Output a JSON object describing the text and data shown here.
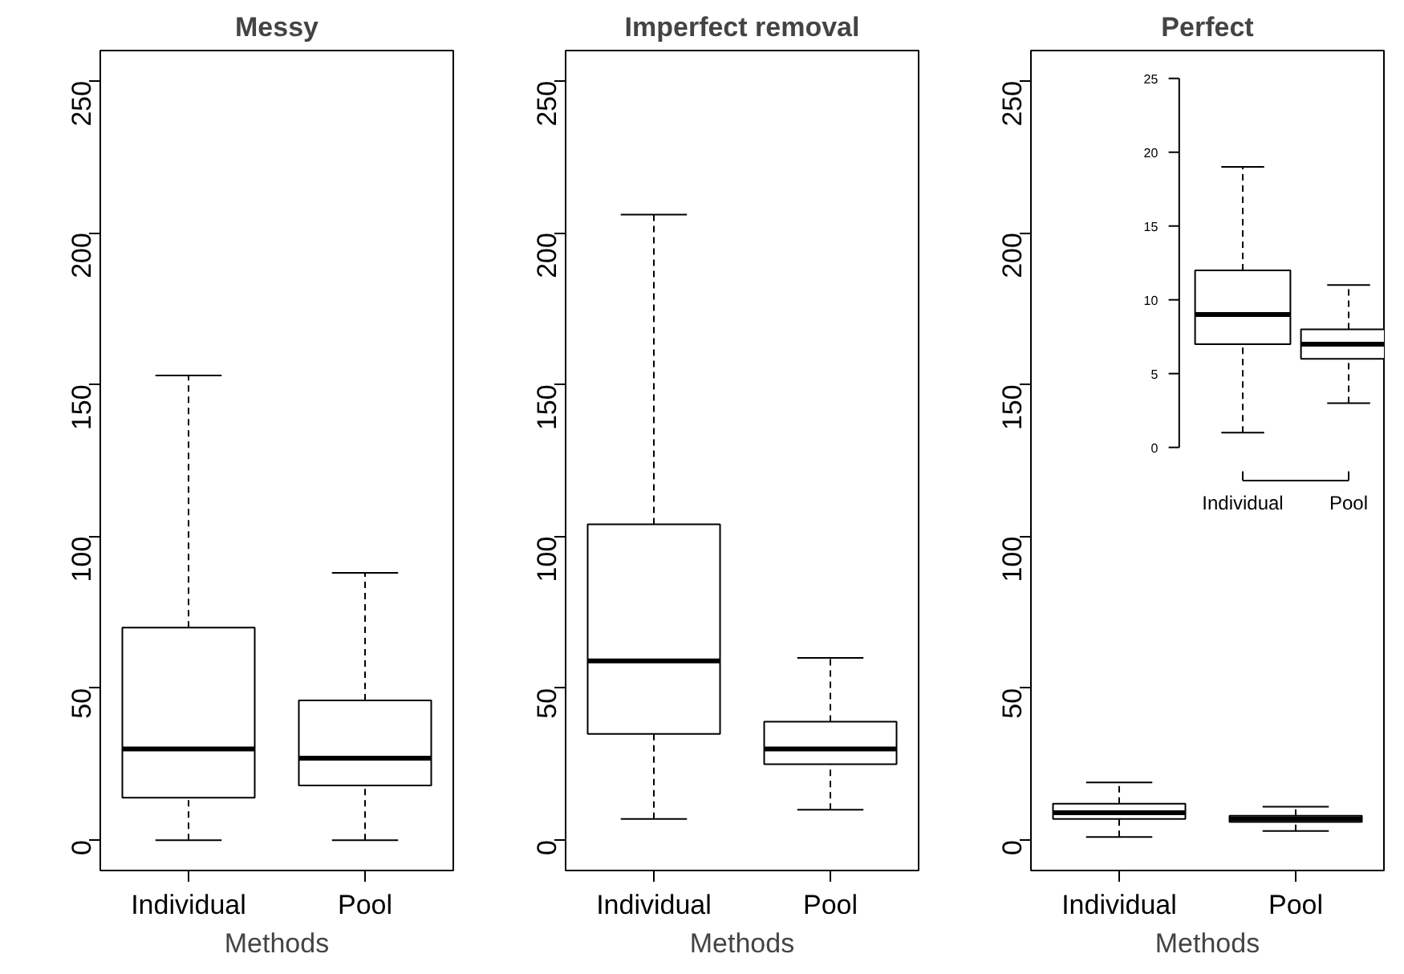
{
  "chart_data": [
    {
      "type": "box",
      "title": "Messy",
      "xlabel": "Methods",
      "categories": [
        "Individual",
        "Pool"
      ],
      "boxes": [
        {
          "low": 0,
          "q1": 14,
          "median": 30,
          "q3": 70,
          "high": 153
        },
        {
          "low": 0,
          "q1": 18,
          "median": 27,
          "q3": 46,
          "high": 88
        }
      ],
      "ylim": [
        -10,
        260
      ],
      "yticks": [
        0,
        50,
        100,
        150,
        200,
        250
      ],
      "grid": false
    },
    {
      "type": "box",
      "title": "Imperfect removal",
      "xlabel": "Methods",
      "categories": [
        "Individual",
        "Pool"
      ],
      "boxes": [
        {
          "low": 7,
          "q1": 35,
          "median": 59,
          "q3": 104,
          "high": 206
        },
        {
          "low": 10,
          "q1": 25,
          "median": 30,
          "q3": 39,
          "high": 60
        }
      ],
      "ylim": [
        -10,
        260
      ],
      "yticks": [
        0,
        50,
        100,
        150,
        200,
        250
      ],
      "grid": false
    },
    {
      "type": "box",
      "title": "Perfect",
      "xlabel": "Methods",
      "categories": [
        "Individual",
        "Pool"
      ],
      "boxes": [
        {
          "low": 1,
          "q1": 7,
          "median": 9,
          "q3": 12,
          "high": 19
        },
        {
          "low": 3,
          "q1": 6,
          "median": 7,
          "q3": 8,
          "high": 11
        }
      ],
      "ylim": [
        -10,
        260
      ],
      "yticks": [
        0,
        50,
        100,
        150,
        200,
        250
      ],
      "grid": false
    },
    {
      "type": "box",
      "categories": [
        "Individual",
        "Pool"
      ],
      "boxes": [
        {
          "low": 1,
          "q1": 7,
          "median": 9,
          "q3": 12,
          "high": 19
        },
        {
          "low": 3,
          "q1": 6,
          "median": 7,
          "q3": 8,
          "high": 11
        }
      ],
      "ylim": [
        0,
        25
      ],
      "yticks": [
        0,
        5,
        10,
        15,
        20,
        25
      ],
      "grid": false
    }
  ]
}
